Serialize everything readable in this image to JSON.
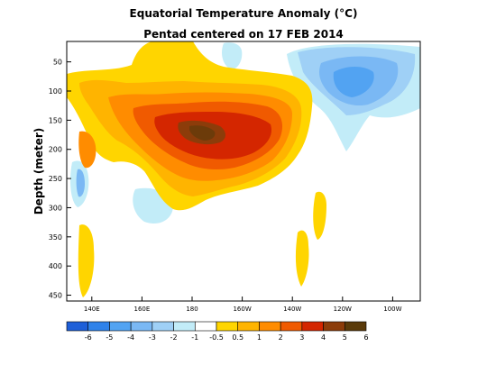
{
  "chart_data": {
    "type": "heatmap",
    "title": "Equatorial Temperature Anomaly (°C)",
    "subtitle": "Pentad centered on 17 FEB 2014",
    "xlabel": "",
    "ylabel": "Depth (meter)",
    "x_ticks": [
      "140E",
      "160E",
      "180",
      "160W",
      "140W",
      "120W",
      "100W"
    ],
    "x_tick_lon": [
      140,
      160,
      180,
      200,
      220,
      240,
      260
    ],
    "xlim_lon": [
      130,
      271
    ],
    "y_ticks": [
      50,
      100,
      150,
      200,
      250,
      300,
      350,
      400,
      450
    ],
    "ylim": [
      15,
      460
    ],
    "legend_labels": [
      "-6",
      "-5",
      "-4",
      "-3",
      "-2",
      "-1",
      "-0.5",
      "0.5",
      "1",
      "2",
      "3",
      "4",
      "5",
      "6"
    ],
    "legend_colors": [
      "#1e5fd8",
      "#2f82ea",
      "#52a3f2",
      "#7ab8f4",
      "#9fd0f6",
      "#c2ecf8",
      "#ffffff",
      "#ffd500",
      "#ffb400",
      "#ff8c00",
      "#f05a00",
      "#d42600",
      "#8c3c0a",
      "#5a3a0a"
    ],
    "anomaly_levels_celsius": {
      "warm_core_peak": 6,
      "warm_core_depth_m": 155,
      "warm_core_lon": 193,
      "cold_core_min": -3,
      "cold_core_depth_m": 90,
      "cold_core_lon": 248
    }
  }
}
